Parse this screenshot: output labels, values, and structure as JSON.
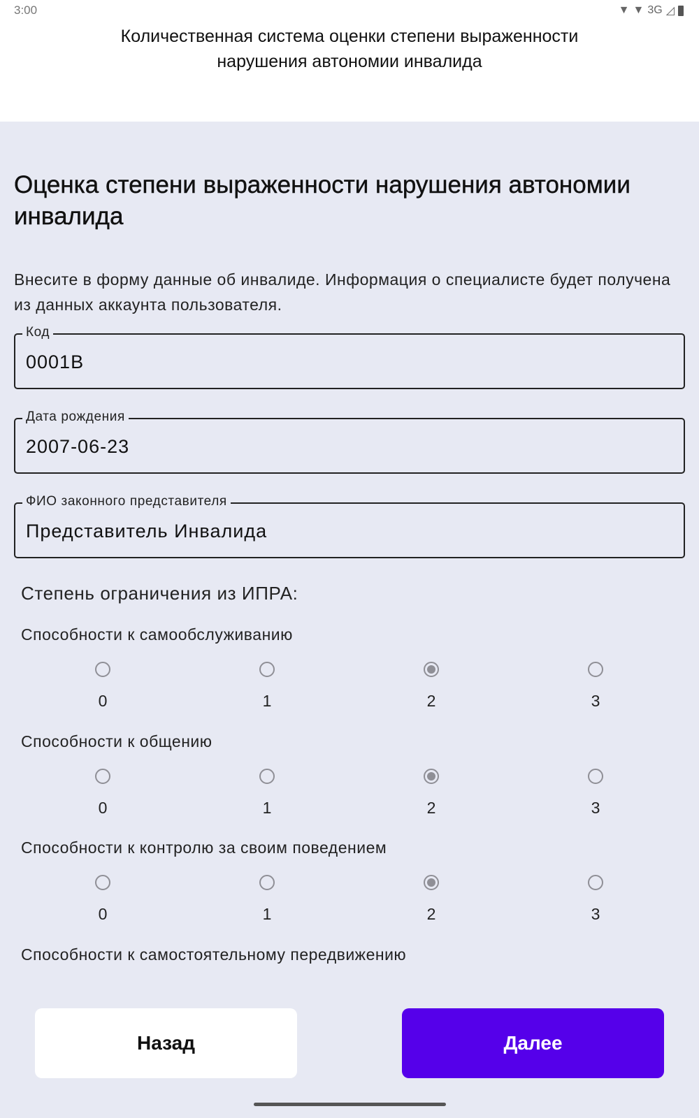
{
  "status_bar": {
    "time": "3:00",
    "network": "3G"
  },
  "app_title": "Количественная система оценки степени выраженности нарушения автономии инвалида",
  "page_title": "Оценка степени выраженности нарушения автономии инвалида",
  "intro": "Внесите в форму данные об инвалиде. Информация о специалисте будет получена из данных аккаунта пользователя.",
  "fields": [
    {
      "label": "Код",
      "value": "0001В"
    },
    {
      "label": "Дата рождения",
      "value": "2007-06-23"
    },
    {
      "label": "ФИО законного представителя",
      "value": "Представитель Инвалида"
    }
  ],
  "section_title": "Степень ограничения из ИПРА:",
  "options": [
    "0",
    "1",
    "2",
    "3"
  ],
  "groups": [
    {
      "label": "Способности к самообслуживанию",
      "selected": "2"
    },
    {
      "label": "Способности к общению",
      "selected": "2"
    },
    {
      "label": "Способности к контролю за своим поведением",
      "selected": "2"
    },
    {
      "label": "Способности к самостоятельному передвижению",
      "selected": null
    }
  ],
  "buttons": {
    "back": "Назад",
    "next": "Далее"
  },
  "colors": {
    "accent": "#5500ea",
    "background": "#e7e9f3"
  }
}
